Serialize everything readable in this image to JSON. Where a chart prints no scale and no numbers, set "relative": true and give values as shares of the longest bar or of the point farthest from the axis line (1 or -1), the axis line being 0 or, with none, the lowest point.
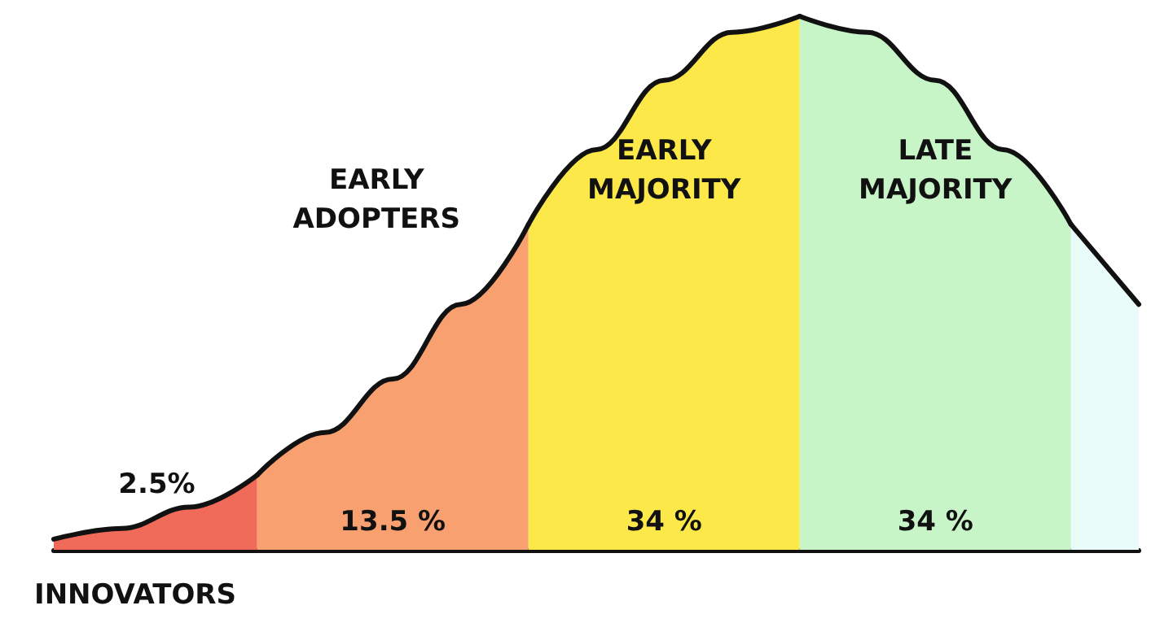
{
  "chart_data": {
    "type": "area",
    "relative": true,
    "categories": [
      null,
      null,
      null,
      null,
      null,
      null,
      null,
      null,
      null,
      null,
      null,
      null,
      null,
      null,
      null,
      null,
      null
    ],
    "series": [
      {
        "name": "INNOVATORS",
        "color": "#f06a5a",
        "values": [
          0.02,
          0.04,
          0.08,
          0.14,
          null,
          null,
          null,
          null,
          null,
          null,
          null,
          null,
          null,
          null,
          null,
          null,
          null
        ]
      },
      {
        "name": "EARLY ADOPTERS",
        "color": "#f9a070",
        "values": [
          null,
          null,
          null,
          0.14,
          0.22,
          0.32,
          0.46,
          0.61,
          null,
          null,
          null,
          null,
          null,
          null,
          null,
          null,
          null
        ]
      },
      {
        "name": "EARLY MAJORITY",
        "color": "#fde84a",
        "values": [
          null,
          null,
          null,
          null,
          null,
          null,
          null,
          0.61,
          0.75,
          0.88,
          0.97,
          1,
          null,
          null,
          null,
          null,
          null
        ]
      },
      {
        "name": "LATE MAJORITY",
        "color": "#c8f5c8",
        "values": [
          null,
          null,
          null,
          null,
          null,
          null,
          null,
          null,
          null,
          null,
          null,
          1,
          0.97,
          0.88,
          0.75,
          0.61,
          null
        ]
      },
      {
        "color": "#eafcfa",
        "values": [
          null,
          null,
          null,
          null,
          null,
          null,
          null,
          null,
          null,
          null,
          null,
          null,
          null,
          null,
          null,
          0.61,
          0.46
        ]
      }
    ],
    "annotations": [
      "2.5%",
      "13.5 %",
      "34 %",
      "34 %"
    ],
    "legend": false,
    "grid": false
  }
}
